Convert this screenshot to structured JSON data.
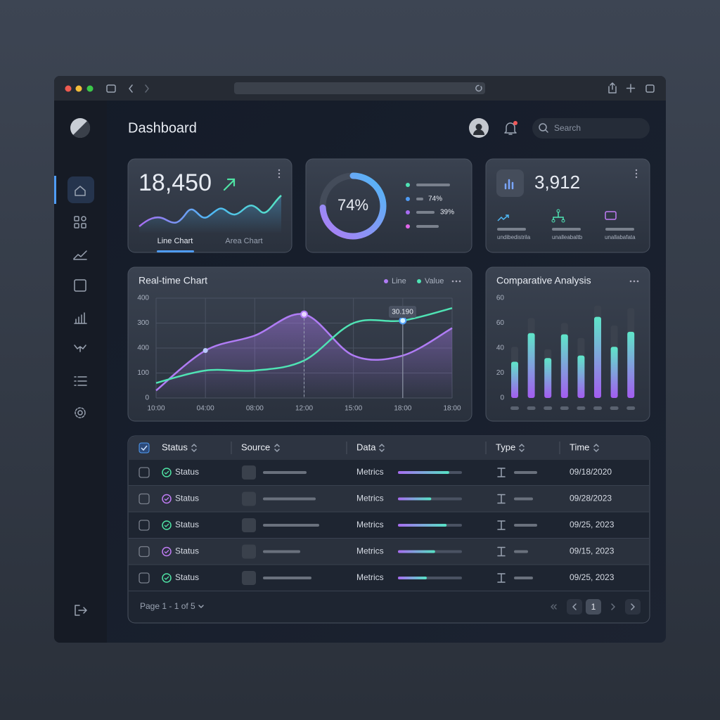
{
  "header": {
    "title": "Dashboard",
    "search": "Search"
  },
  "kpi_card": {
    "value": "18,450",
    "tabs": [
      "Line Chart",
      "Area Chart"
    ]
  },
  "progress_card": {
    "percent": {
      "value": 74,
      "label": "74%"
    },
    "legend": [
      "74%",
      "39%"
    ]
  },
  "stat_card": {
    "value": "3,912",
    "labels": [
      "undibedistrila",
      "unalleabaltb",
      "unallabafata"
    ]
  },
  "realtime_chart": {
    "type": "line",
    "title": "Real-time Chart",
    "categories": [
      "10:00",
      "04:00",
      "08:00",
      "12:00",
      "15:00",
      "18:00",
      "18:00"
    ],
    "ylim": [
      0,
      400
    ],
    "y_labels": [
      0,
      100,
      400,
      300,
      400
    ],
    "tooltip": "30.190",
    "series": [
      {
        "name": "Line",
        "color": "#b07cf5",
        "values": [
          30,
          190,
          250,
          335,
          170,
          170,
          280
        ]
      },
      {
        "name": "Value",
        "color": "#4fe3b4",
        "values": [
          60,
          110,
          110,
          150,
          300,
          310,
          360
        ]
      }
    ]
  },
  "comparative_chart": {
    "type": "bar",
    "title": "Comparative Analysis",
    "ylim": [
      0,
      80
    ],
    "y_labels": [
      0,
      20,
      40,
      60,
      60
    ],
    "series": [
      {
        "color": "#3b424e",
        "values": [
          41,
          64,
          39,
          60,
          48,
          74,
          58,
          72
        ]
      },
      {
        "color": "#5ee6c8",
        "values": [
          29,
          52,
          32,
          51,
          34,
          65,
          41,
          53
        ]
      }
    ]
  },
  "table": {
    "columns": [
      "Status",
      "Source",
      "Data",
      "Type",
      "Time"
    ],
    "rows": [
      {
        "status": "Status",
        "data": "Metrics",
        "progress": 80,
        "time": "09/18/2020"
      },
      {
        "status": "Status",
        "data": "Metrics",
        "progress": 52,
        "time": "09/28/2023"
      },
      {
        "status": "Status",
        "data": "Metrics",
        "progress": 76,
        "time": "09/25, 2023"
      },
      {
        "status": "Status",
        "data": "Metrics",
        "progress": 58,
        "time": "09/15, 2023"
      },
      {
        "status": "Status",
        "data": "Metrics",
        "progress": 45,
        "time": "09/25, 2023"
      }
    ]
  },
  "pagination": {
    "summary": "Page 1 - 1 of 5",
    "current": "1"
  }
}
